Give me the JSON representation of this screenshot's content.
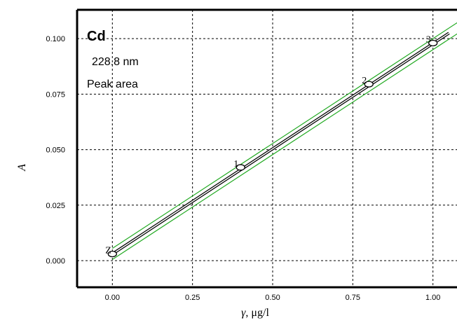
{
  "chart_data": {
    "type": "scatter",
    "title": "",
    "xlabel_symbol": "γ",
    "xlabel_unit": ", μg/l",
    "ylabel": "A",
    "xlim": [
      -0.11,
      1.11
    ],
    "ylim": [
      -0.012,
      0.113
    ],
    "x_ticks": [
      0.0,
      0.25,
      0.5,
      0.75,
      1.0
    ],
    "x_tick_labels": [
      "0.00",
      "0.25",
      "0.50",
      "0.75",
      "1.00"
    ],
    "y_ticks": [
      0.0,
      0.025,
      0.05,
      0.075,
      0.1
    ],
    "y_tick_labels": [
      "0.000",
      "0.025",
      "0.050",
      "0.075",
      "0.100"
    ],
    "grid": true,
    "annotations": {
      "element": "Cd",
      "wavelength": "228.8 nm",
      "mode": "Peak area"
    },
    "points": [
      {
        "label": "Z",
        "x": 0.0,
        "y": 0.003
      },
      {
        "label": "1",
        "x": 0.4,
        "y": 0.042
      },
      {
        "label": "2",
        "x": 0.8,
        "y": 0.0795
      },
      {
        "label": "3",
        "x": 1.0,
        "y": 0.098
      }
    ],
    "fit_line": {
      "x": [
        0.0,
        1.05
      ],
      "y": [
        0.003,
        0.1025
      ],
      "color": "#000000"
    },
    "confidence_upper": {
      "x": [
        0.0,
        1.1
      ],
      "y": [
        0.0055,
        0.1095
      ],
      "color": "#22aa22"
    },
    "confidence_lower": {
      "x": [
        0.0,
        1.1
      ],
      "y": [
        0.0005,
        0.1045
      ],
      "color": "#22aa22"
    }
  }
}
